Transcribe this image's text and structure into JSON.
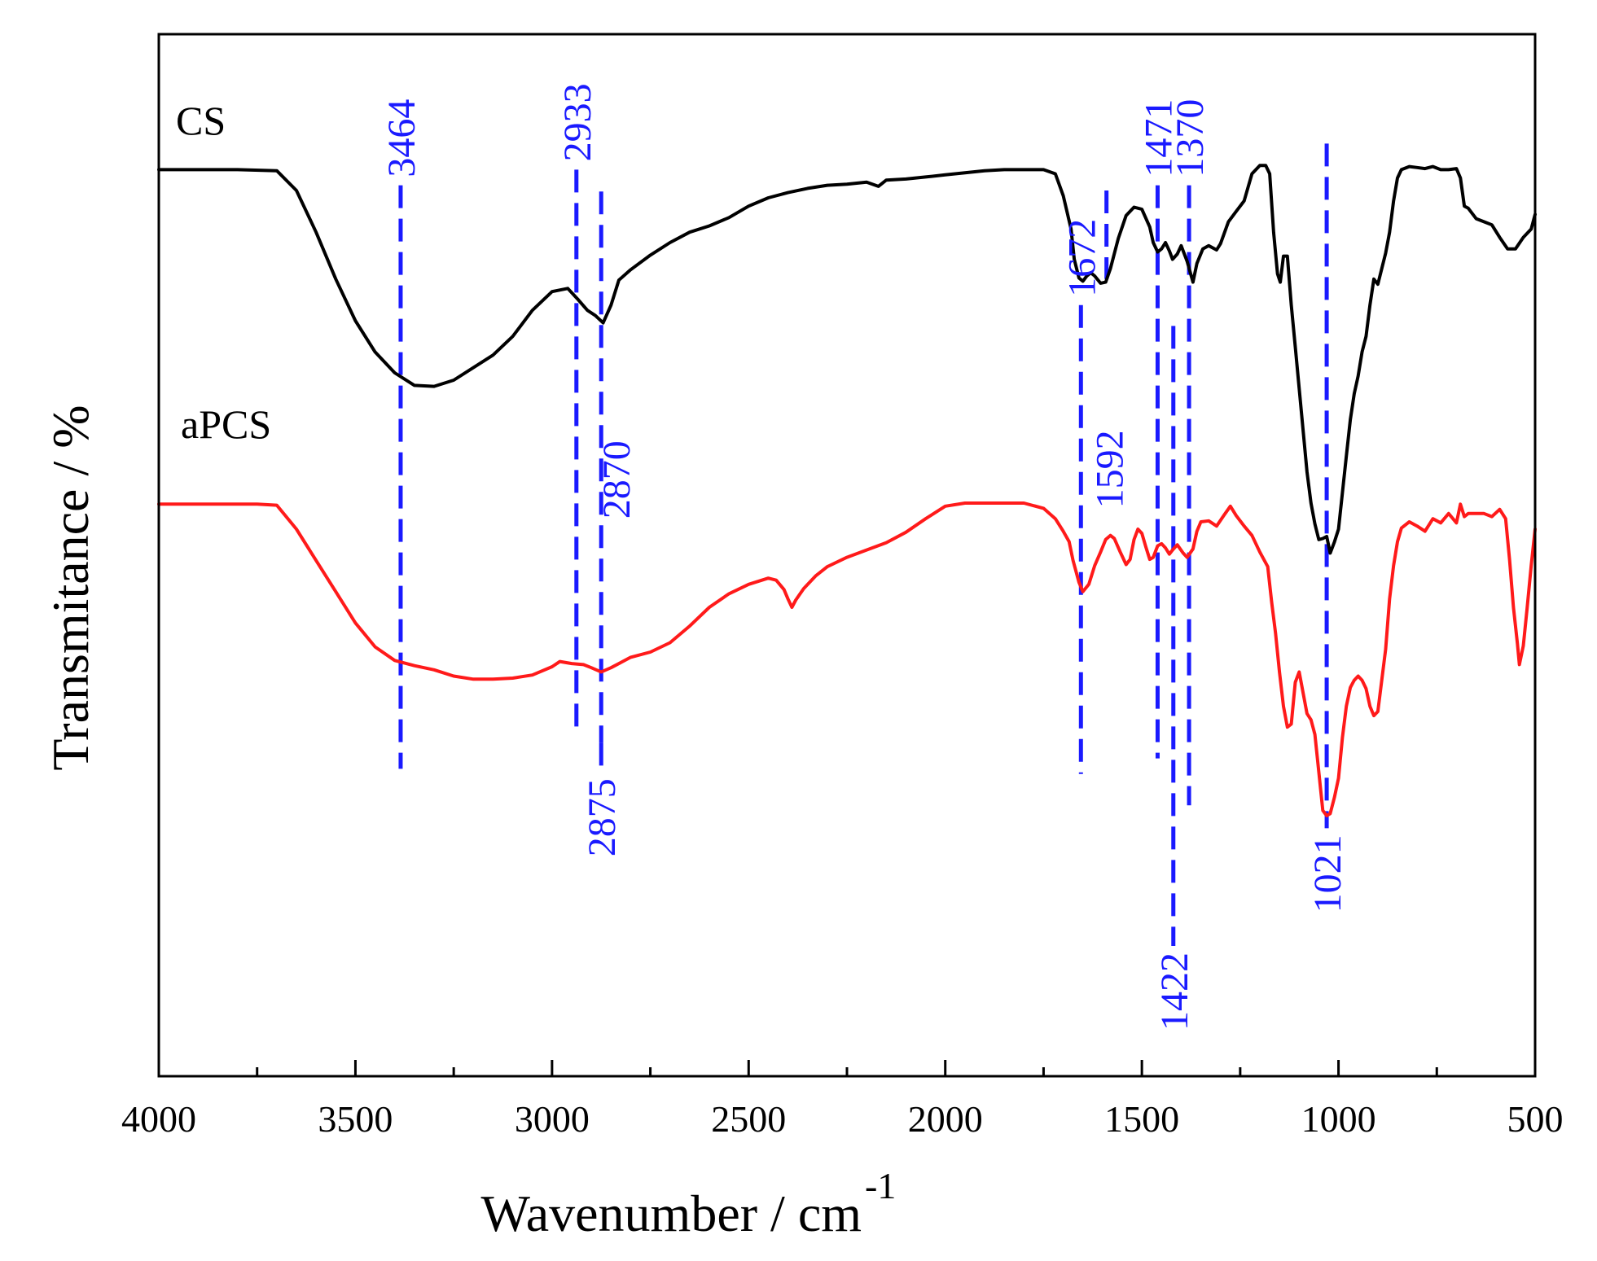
{
  "chart_data": {
    "type": "line",
    "xlabel": "Wavenumber / cm",
    "xlabel_superscript": "-1",
    "ylabel": "Transmitance / %",
    "xlim": [
      4000,
      500
    ],
    "x_reversed": true,
    "ylim": [
      0,
      100
    ],
    "y_ticks_shown": false,
    "x_ticks": [
      "4000",
      "3500",
      "3000",
      "2500",
      "2000",
      "1500",
      "1000",
      "500"
    ],
    "grid": false,
    "peak_color": "#1a1aff",
    "series": [
      {
        "name": "CS",
        "color": "#000000",
        "points": [
          [
            4000,
            87
          ],
          [
            3900,
            87
          ],
          [
            3800,
            87
          ],
          [
            3700,
            86.9
          ],
          [
            3650,
            85
          ],
          [
            3600,
            81
          ],
          [
            3550,
            76.5
          ],
          [
            3500,
            72.5
          ],
          [
            3450,
            69.5
          ],
          [
            3400,
            67.5
          ],
          [
            3350,
            66.3
          ],
          [
            3300,
            66.2
          ],
          [
            3250,
            66.8
          ],
          [
            3200,
            68
          ],
          [
            3150,
            69.2
          ],
          [
            3100,
            71
          ],
          [
            3050,
            73.5
          ],
          [
            3000,
            75.3
          ],
          [
            2960,
            75.6
          ],
          [
            2933,
            74.5
          ],
          [
            2910,
            73.5
          ],
          [
            2890,
            73
          ],
          [
            2870,
            72.3
          ],
          [
            2850,
            74
          ],
          [
            2830,
            76.4
          ],
          [
            2800,
            77.4
          ],
          [
            2750,
            78.8
          ],
          [
            2700,
            80
          ],
          [
            2650,
            81
          ],
          [
            2600,
            81.6
          ],
          [
            2550,
            82.4
          ],
          [
            2500,
            83.5
          ],
          [
            2450,
            84.3
          ],
          [
            2400,
            84.8
          ],
          [
            2350,
            85.2
          ],
          [
            2300,
            85.5
          ],
          [
            2250,
            85.6
          ],
          [
            2200,
            85.8
          ],
          [
            2170,
            85.4
          ],
          [
            2150,
            86
          ],
          [
            2100,
            86.1
          ],
          [
            2050,
            86.3
          ],
          [
            2000,
            86.5
          ],
          [
            1950,
            86.7
          ],
          [
            1900,
            86.9
          ],
          [
            1850,
            87
          ],
          [
            1800,
            87
          ],
          [
            1750,
            87
          ],
          [
            1720,
            86.6
          ],
          [
            1700,
            84.5
          ],
          [
            1680,
            81.3
          ],
          [
            1672,
            78.4
          ],
          [
            1660,
            76.6
          ],
          [
            1650,
            76.3
          ],
          [
            1640,
            76.8
          ],
          [
            1630,
            77.1
          ],
          [
            1620,
            76.8
          ],
          [
            1605,
            76.1
          ],
          [
            1592,
            76.2
          ],
          [
            1580,
            77.5
          ],
          [
            1560,
            80.4
          ],
          [
            1540,
            82.6
          ],
          [
            1520,
            83.4
          ],
          [
            1500,
            83.2
          ],
          [
            1480,
            81.5
          ],
          [
            1471,
            80
          ],
          [
            1460,
            79.1
          ],
          [
            1450,
            79.4
          ],
          [
            1440,
            80
          ],
          [
            1430,
            79.2
          ],
          [
            1422,
            78.4
          ],
          [
            1410,
            78.9
          ],
          [
            1400,
            79.7
          ],
          [
            1385,
            78.2
          ],
          [
            1370,
            76.2
          ],
          [
            1360,
            78
          ],
          [
            1345,
            79.4
          ],
          [
            1330,
            79.7
          ],
          [
            1310,
            79.3
          ],
          [
            1300,
            79.9
          ],
          [
            1280,
            82
          ],
          [
            1260,
            83
          ],
          [
            1240,
            84
          ],
          [
            1220,
            86.6
          ],
          [
            1200,
            87.4
          ],
          [
            1185,
            87.4
          ],
          [
            1175,
            86.6
          ],
          [
            1165,
            81
          ],
          [
            1155,
            77
          ],
          [
            1148,
            76.2
          ],
          [
            1140,
            78.7
          ],
          [
            1130,
            78.7
          ],
          [
            1120,
            74
          ],
          [
            1110,
            70
          ],
          [
            1100,
            66
          ],
          [
            1090,
            62
          ],
          [
            1080,
            58
          ],
          [
            1070,
            55
          ],
          [
            1060,
            53
          ],
          [
            1050,
            51.5
          ],
          [
            1040,
            51.6
          ],
          [
            1030,
            51.8
          ],
          [
            1021,
            50.2
          ],
          [
            1010,
            51.3
          ],
          [
            1000,
            52.5
          ],
          [
            990,
            56
          ],
          [
            980,
            59.5
          ],
          [
            970,
            63
          ],
          [
            960,
            65.5
          ],
          [
            950,
            67.2
          ],
          [
            940,
            69.5
          ],
          [
            930,
            71
          ],
          [
            920,
            74
          ],
          [
            910,
            76.5
          ],
          [
            900,
            76
          ],
          [
            890,
            77.5
          ],
          [
            880,
            79
          ],
          [
            870,
            81
          ],
          [
            860,
            84
          ],
          [
            850,
            86.2
          ],
          [
            840,
            87
          ],
          [
            820,
            87.3
          ],
          [
            800,
            87.2
          ],
          [
            780,
            87.1
          ],
          [
            760,
            87.3
          ],
          [
            740,
            87
          ],
          [
            720,
            87
          ],
          [
            700,
            87.1
          ],
          [
            690,
            86.2
          ],
          [
            680,
            83.5
          ],
          [
            670,
            83.3
          ],
          [
            650,
            82.3
          ],
          [
            630,
            82
          ],
          [
            610,
            81.7
          ],
          [
            590,
            80.5
          ],
          [
            570,
            79.4
          ],
          [
            550,
            79.4
          ],
          [
            530,
            80.5
          ],
          [
            510,
            81.3
          ],
          [
            500,
            82.7
          ]
        ]
      },
      {
        "name": "aPCS",
        "color": "#ff1a1a",
        "points": [
          [
            4000,
            54.9
          ],
          [
            3900,
            54.9
          ],
          [
            3800,
            54.9
          ],
          [
            3750,
            54.9
          ],
          [
            3700,
            54.8
          ],
          [
            3650,
            52.5
          ],
          [
            3600,
            49.5
          ],
          [
            3550,
            46.5
          ],
          [
            3500,
            43.5
          ],
          [
            3450,
            41.2
          ],
          [
            3400,
            39.9
          ],
          [
            3350,
            39.4
          ],
          [
            3300,
            39
          ],
          [
            3250,
            38.4
          ],
          [
            3200,
            38.1
          ],
          [
            3150,
            38.1
          ],
          [
            3100,
            38.2
          ],
          [
            3050,
            38.5
          ],
          [
            3000,
            39.3
          ],
          [
            2980,
            39.8
          ],
          [
            2950,
            39.6
          ],
          [
            2920,
            39.5
          ],
          [
            2900,
            39.2
          ],
          [
            2875,
            38.8
          ],
          [
            2850,
            39.2
          ],
          [
            2800,
            40.2
          ],
          [
            2750,
            40.7
          ],
          [
            2700,
            41.6
          ],
          [
            2650,
            43.2
          ],
          [
            2600,
            45
          ],
          [
            2550,
            46.3
          ],
          [
            2500,
            47.2
          ],
          [
            2450,
            47.8
          ],
          [
            2430,
            47.6
          ],
          [
            2410,
            46.7
          ],
          [
            2400,
            45.8
          ],
          [
            2390,
            45
          ],
          [
            2380,
            45.7
          ],
          [
            2360,
            46.8
          ],
          [
            2330,
            48
          ],
          [
            2300,
            48.9
          ],
          [
            2250,
            49.8
          ],
          [
            2200,
            50.5
          ],
          [
            2150,
            51.2
          ],
          [
            2100,
            52.2
          ],
          [
            2050,
            53.5
          ],
          [
            2000,
            54.7
          ],
          [
            1950,
            55
          ],
          [
            1900,
            55
          ],
          [
            1850,
            55
          ],
          [
            1800,
            55
          ],
          [
            1750,
            54.5
          ],
          [
            1720,
            53.5
          ],
          [
            1700,
            52.3
          ],
          [
            1685,
            51.3
          ],
          [
            1675,
            49.5
          ],
          [
            1660,
            47.4
          ],
          [
            1650,
            46.5
          ],
          [
            1635,
            47.2
          ],
          [
            1620,
            49
          ],
          [
            1605,
            50.3
          ],
          [
            1592,
            51.5
          ],
          [
            1580,
            51.9
          ],
          [
            1570,
            51.6
          ],
          [
            1555,
            50.3
          ],
          [
            1540,
            49.1
          ],
          [
            1530,
            49.6
          ],
          [
            1520,
            51.5
          ],
          [
            1510,
            52.5
          ],
          [
            1500,
            52.1
          ],
          [
            1490,
            50.8
          ],
          [
            1480,
            49.6
          ],
          [
            1471,
            49.8
          ],
          [
            1460,
            50.9
          ],
          [
            1450,
            51.1
          ],
          [
            1440,
            50.7
          ],
          [
            1430,
            50.1
          ],
          [
            1422,
            50.5
          ],
          [
            1410,
            51
          ],
          [
            1395,
            50.2
          ],
          [
            1385,
            49.8
          ],
          [
            1370,
            50.6
          ],
          [
            1360,
            52.3
          ],
          [
            1350,
            53.2
          ],
          [
            1330,
            53.3
          ],
          [
            1310,
            52.8
          ],
          [
            1290,
            53.9
          ],
          [
            1275,
            54.7
          ],
          [
            1260,
            53.8
          ],
          [
            1240,
            52.8
          ],
          [
            1220,
            51.9
          ],
          [
            1200,
            50.3
          ],
          [
            1180,
            48.9
          ],
          [
            1170,
            45.5
          ],
          [
            1160,
            42.5
          ],
          [
            1150,
            38.8
          ],
          [
            1140,
            35.5
          ],
          [
            1130,
            33.5
          ],
          [
            1120,
            33.8
          ],
          [
            1110,
            37.8
          ],
          [
            1100,
            38.8
          ],
          [
            1090,
            36.8
          ],
          [
            1080,
            34.8
          ],
          [
            1070,
            34.2
          ],
          [
            1060,
            32.8
          ],
          [
            1050,
            29.2
          ],
          [
            1040,
            25.5
          ],
          [
            1030,
            25
          ],
          [
            1021,
            25.2
          ],
          [
            1010,
            26.8
          ],
          [
            1000,
            28.6
          ],
          [
            990,
            32.5
          ],
          [
            980,
            35.5
          ],
          [
            970,
            37.3
          ],
          [
            960,
            38
          ],
          [
            950,
            38.4
          ],
          [
            940,
            38
          ],
          [
            930,
            37.2
          ],
          [
            920,
            35.5
          ],
          [
            910,
            34.6
          ],
          [
            900,
            35
          ],
          [
            890,
            38
          ],
          [
            880,
            41
          ],
          [
            870,
            45.8
          ],
          [
            860,
            49
          ],
          [
            850,
            51.3
          ],
          [
            840,
            52.6
          ],
          [
            820,
            53.2
          ],
          [
            800,
            52.8
          ],
          [
            780,
            52.3
          ],
          [
            760,
            53.5
          ],
          [
            740,
            53.1
          ],
          [
            720,
            54
          ],
          [
            700,
            53.1
          ],
          [
            690,
            54.9
          ],
          [
            680,
            53.7
          ],
          [
            670,
            54
          ],
          [
            650,
            54
          ],
          [
            630,
            54
          ],
          [
            610,
            53.7
          ],
          [
            590,
            54.4
          ],
          [
            575,
            53.5
          ],
          [
            565,
            49.6
          ],
          [
            555,
            45
          ],
          [
            545,
            41.5
          ],
          [
            540,
            39.5
          ],
          [
            530,
            41.3
          ],
          [
            520,
            45
          ],
          [
            510,
            49
          ],
          [
            500,
            52.5
          ]
        ]
      }
    ],
    "peaks": [
      {
        "label": "3464",
        "x": 3385,
        "y_top": 85.5,
        "y_bottom": 29.5,
        "label_pos": "above"
      },
      {
        "label": "2933",
        "x": 2938,
        "y_top": 87,
        "y_bottom": 33.5,
        "label_pos": "above"
      },
      {
        "label": "2870",
        "x": 2875,
        "y_top": 84.9,
        "y_bottom": 32,
        "label_pos": "beside"
      },
      {
        "label": "2875",
        "x": 2875,
        "y_top": 32,
        "y_bottom": 29.2,
        "label_pos": "below"
      },
      {
        "label": "1672",
        "x": 1655,
        "y_top": 74,
        "y_bottom": 29,
        "label_pos": "above"
      },
      {
        "label": "1592",
        "x": 1590,
        "y_top": 85,
        "y_bottom": 76.5,
        "label_pos": "below"
      },
      {
        "label": "1471",
        "x": 1460,
        "y_top": 85.5,
        "y_bottom": 30.5,
        "label_pos": "above"
      },
      {
        "label": "1422",
        "x": 1420,
        "y_top": 72,
        "y_bottom": 12.5,
        "label_pos": "below"
      },
      {
        "label": "1370",
        "x": 1380,
        "y_top": 85.5,
        "y_bottom": 26,
        "label_pos": "above"
      },
      {
        "label": "1021",
        "x": 1030,
        "y_top": 89.5,
        "y_bottom": 23.8,
        "label_pos": "below"
      }
    ]
  }
}
